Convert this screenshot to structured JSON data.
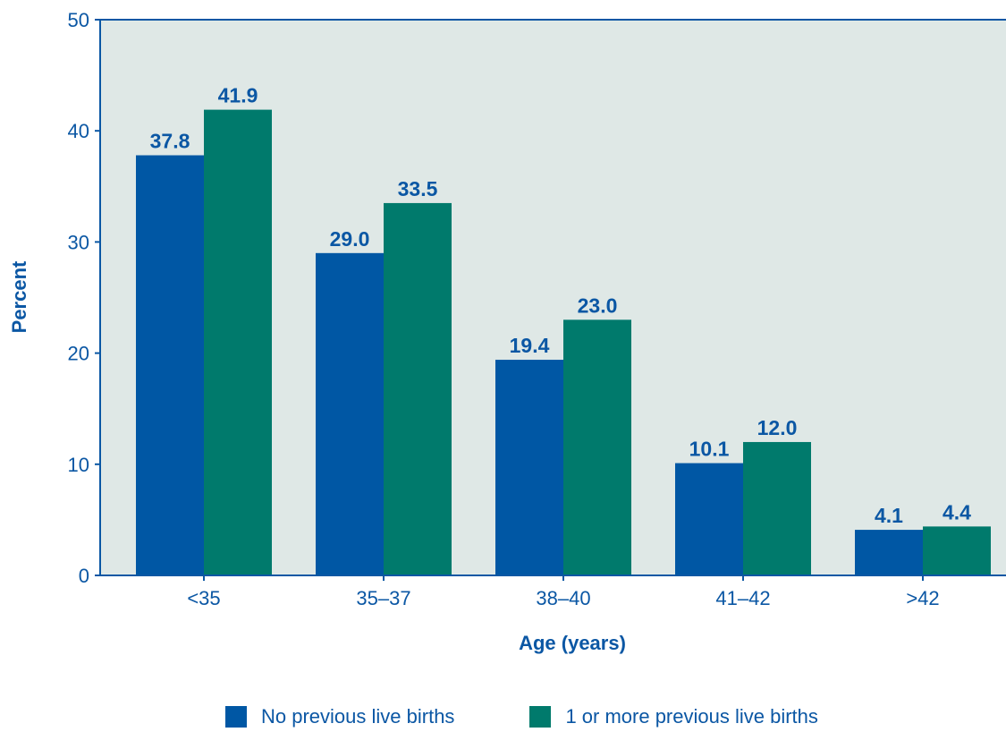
{
  "chart_data": {
    "type": "bar",
    "categories": [
      "<35",
      "35–37",
      "38–40",
      "41–42",
      ">42"
    ],
    "series": [
      {
        "name": "No previous live births",
        "color": "#0057a4",
        "values": [
          37.8,
          29.0,
          19.4,
          10.1,
          4.1
        ],
        "labels": [
          "37.8",
          "29.0",
          "19.4",
          "10.1",
          "4.1"
        ]
      },
      {
        "name": "1 or more previous live births",
        "color": "#007a6c",
        "values": [
          41.9,
          33.5,
          23.0,
          12.0,
          4.4
        ],
        "labels": [
          "41.9",
          "33.5",
          "23.0",
          "12.0",
          "4.4"
        ]
      }
    ],
    "xlabel": "Age (years)",
    "ylabel": "Percent",
    "ylim": [
      0,
      50
    ],
    "yticks": [
      "0",
      "10",
      "20",
      "30",
      "40",
      "50"
    ],
    "plot_background": "#dfe8e6",
    "text_color": "#0b57a4",
    "grid": false,
    "legend_position": "bottom"
  }
}
